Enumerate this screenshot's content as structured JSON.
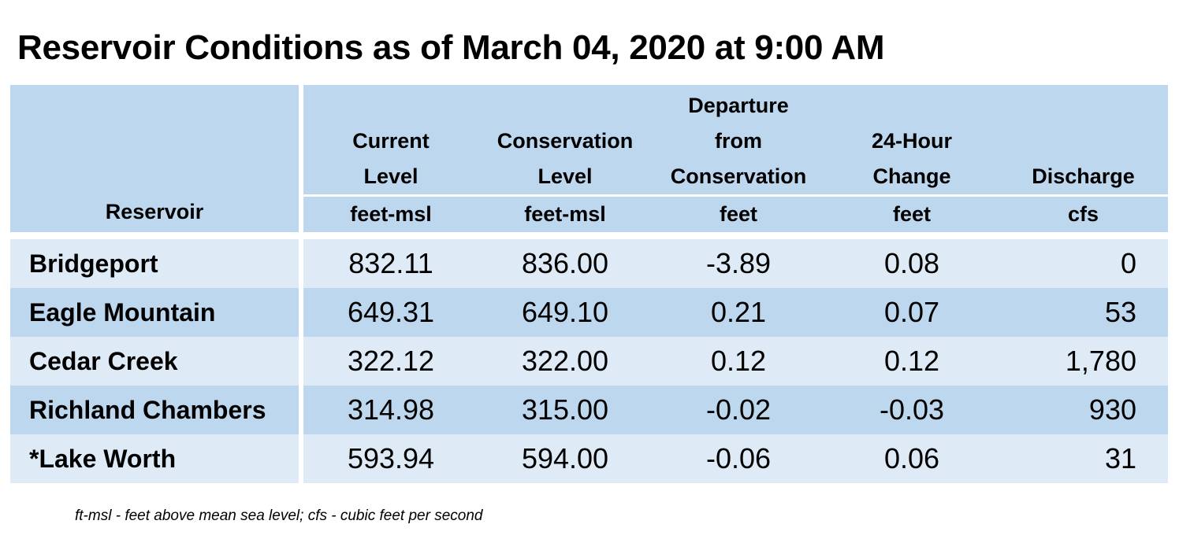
{
  "title": "Reservoir Conditions as of March 04, 2020 at 9:00 AM",
  "table": {
    "headers": {
      "reservoir": "Reservoir",
      "current_level": [
        "Current",
        "Level"
      ],
      "conservation_level": [
        "Conservation",
        "Level"
      ],
      "departure": [
        "Departure",
        "from",
        "Conservation"
      ],
      "change_24h": [
        "24-Hour",
        "Change"
      ],
      "discharge": [
        "Discharge"
      ]
    },
    "units": {
      "current_level": "feet-msl",
      "conservation_level": "feet-msl",
      "departure": "feet",
      "change_24h": "feet",
      "discharge": "cfs"
    },
    "rows": [
      {
        "name": "Bridgeport",
        "current": "832.11",
        "conservation": "836.00",
        "departure": "-3.89",
        "change": "0.08",
        "discharge": "0"
      },
      {
        "name": "Eagle Mountain",
        "current": "649.31",
        "conservation": "649.10",
        "departure": "0.21",
        "change": "0.07",
        "discharge": "53"
      },
      {
        "name": "Cedar Creek",
        "current": "322.12",
        "conservation": "322.00",
        "departure": "0.12",
        "change": "0.12",
        "discharge": "1,780"
      },
      {
        "name": "Richland Chambers",
        "current": "314.98",
        "conservation": "315.00",
        "departure": "-0.02",
        "change": "-0.03",
        "discharge": "930"
      },
      {
        "name": "*Lake Worth",
        "current": "593.94",
        "conservation": "594.00",
        "departure": "-0.06",
        "change": "0.06",
        "discharge": "31"
      }
    ]
  },
  "footnote": "ft-msl - feet above mean sea level; cfs - cubic feet per second",
  "colors": {
    "header_bg": "#bdd7ee",
    "row_light": "#deebf7",
    "row_dark": "#bdd7ee"
  }
}
